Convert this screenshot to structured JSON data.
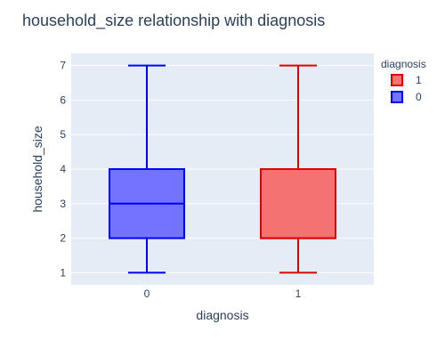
{
  "chart_data": {
    "type": "box",
    "title": "household_size relationship with diagnosis",
    "xlabel": "diagnosis",
    "ylabel": "household_size",
    "ylim": [
      0.65,
      7.35
    ],
    "yticks": [
      1,
      2,
      3,
      4,
      5,
      6,
      7
    ],
    "categories": [
      "0",
      "1"
    ],
    "grid": true,
    "legend": {
      "title": "diagnosis",
      "position": "top-right",
      "order": [
        "1",
        "0"
      ]
    },
    "series": [
      {
        "name": "0",
        "category": "0",
        "color": "#0000ff",
        "fill": "#7373ff",
        "min": 1,
        "q1": 2,
        "median": 3,
        "q3": 4,
        "max": 7
      },
      {
        "name": "1",
        "category": "1",
        "color": "#e00000",
        "fill": "#f47272",
        "min": 1,
        "q1": 2,
        "median": 2,
        "q3": 4,
        "max": 7
      }
    ]
  }
}
